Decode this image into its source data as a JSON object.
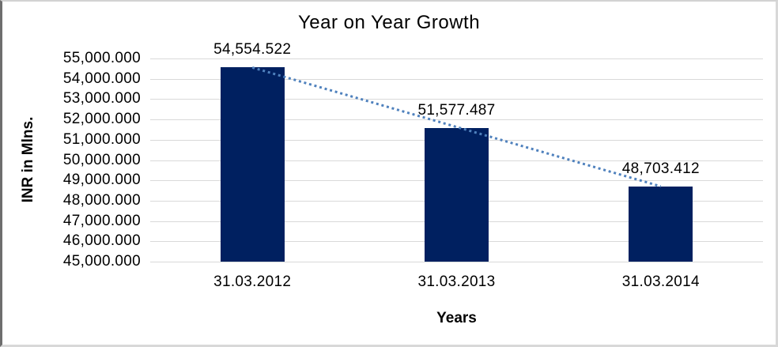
{
  "chart_data": {
    "type": "bar",
    "title": "Year on Year Growth",
    "xlabel": "Years",
    "ylabel": "INR in Mlns.",
    "categories": [
      "31.03.2012",
      "31.03.2013",
      "31.03.2014"
    ],
    "series": [
      {
        "name": "INR in Mlns.",
        "values": [
          54554.522,
          51577.487,
          48703.412
        ],
        "data_labels": [
          "54,554.522",
          "51,577.487",
          "48,703.412"
        ]
      }
    ],
    "trendline": {
      "type": "linear",
      "style": "dotted",
      "from_value": 54554.522,
      "to_value": 48703.412
    },
    "y_tick_labels": [
      "55,000.000",
      "54,000.000",
      "53,000.000",
      "52,000.000",
      "51,000.000",
      "50,000.000",
      "49,000.000",
      "48,000.000",
      "47,000.000",
      "46,000.000",
      "45,000.000"
    ],
    "ylim": [
      45000,
      55000
    ],
    "grid": true,
    "legend_position": "none",
    "colors": {
      "bar": "#002060",
      "trendline": "#4F81BD",
      "gridline": "#D9D9D9",
      "text": "#000000",
      "background": "#FFFFFF"
    }
  }
}
